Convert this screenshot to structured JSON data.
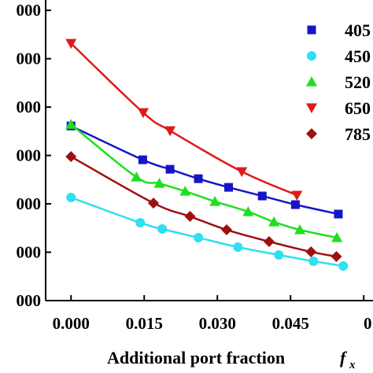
{
  "chart_data": {
    "type": "scatter",
    "x_label": "Additional port fraction",
    "x_label_var": "f",
    "x_label_sub": "x",
    "xlim": [
      -0.0052,
      0.0619
    ],
    "ylim": [
      1000,
      7100
    ],
    "xticks": [
      {
        "value": 0,
        "label": "0.000"
      },
      {
        "value": 0.015,
        "label": "0.015"
      },
      {
        "value": 0.03,
        "label": "0.030"
      },
      {
        "value": 0.045,
        "label": "0.045"
      },
      {
        "value": 0.06,
        "label": "0"
      }
    ],
    "yticks": [
      {
        "value": 1000,
        "label": "000"
      },
      {
        "value": 2000,
        "label": "000"
      },
      {
        "value": 3000,
        "label": "000"
      },
      {
        "value": 4000,
        "label": "000"
      },
      {
        "value": 5000,
        "label": "000"
      },
      {
        "value": 6000,
        "label": "000"
      },
      {
        "value": 7000,
        "label": "000"
      }
    ],
    "series": [
      {
        "name": "405",
        "color": "#1515c8",
        "marker": "square",
        "x": [
          0,
          0.0147,
          0.0203,
          0.0261,
          0.0323,
          0.0392,
          0.046,
          0.0548
        ],
        "values": [
          4610,
          3911,
          3715,
          3520,
          3341,
          3163,
          2984,
          2789
        ]
      },
      {
        "name": "450",
        "color": "#2ee0f0",
        "marker": "circle",
        "x": [
          0,
          0.0142,
          0.0187,
          0.0261,
          0.0342,
          0.0426,
          0.0497,
          0.0558
        ],
        "values": [
          3130,
          2610,
          2480,
          2301,
          2106,
          1943,
          1813,
          1715
        ]
      },
      {
        "name": "520",
        "color": "#1ee01e",
        "marker": "triangle-up",
        "x": [
          0,
          0.0134,
          0.0181,
          0.0234,
          0.0295,
          0.0363,
          0.0416,
          0.0469,
          0.0545
        ],
        "values": [
          4642,
          3553,
          3423,
          3260,
          3049,
          2837,
          2626,
          2463,
          2301
        ]
      },
      {
        "name": "650",
        "color": "#e01a1a",
        "marker": "triangle-down",
        "x": [
          0,
          0.0148,
          0.0203,
          0.035,
          0.0463
        ],
        "values": [
          6317,
          4886,
          4512,
          3667,
          3179
        ]
      },
      {
        "name": "785",
        "color": "#a01010",
        "marker": "diamond",
        "x": [
          0,
          0.0169,
          0.0244,
          0.0319,
          0.0406,
          0.0492,
          0.0544
        ],
        "values": [
          3976,
          3016,
          2740,
          2463,
          2220,
          2008,
          1911
        ]
      }
    ]
  }
}
